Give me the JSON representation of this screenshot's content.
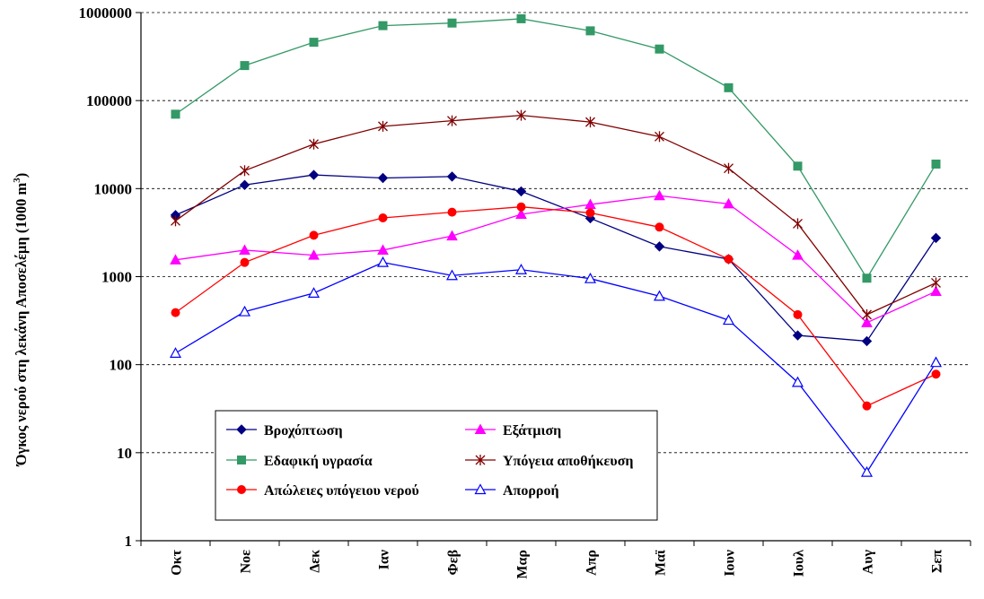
{
  "chart_data": {
    "type": "line",
    "y_scale": "log",
    "ylim": [
      1,
      1000000
    ],
    "grid": "horizontal dashed",
    "legend_placement": "bottom-left",
    "ylabel": "Όγκος νερού στη λεκάνη Αποσελέμη (1000 m",
    "ylabel_sup": "3",
    "ylabel_tail": ")",
    "yticks": [
      {
        "value": 1,
        "label": "1"
      },
      {
        "value": 10,
        "label": "10"
      },
      {
        "value": 100,
        "label": "100"
      },
      {
        "value": 1000,
        "label": "1000"
      },
      {
        "value": 10000,
        "label": "10000"
      },
      {
        "value": 100000,
        "label": "100000"
      },
      {
        "value": 1000000,
        "label": "1000000"
      }
    ],
    "categories": [
      "Οκτ",
      "Νοε",
      "Δεκ",
      "Ιαν",
      "Φεβ",
      "Μαρ",
      "Απρ",
      "Μαϊ",
      "Ιουν",
      "Ιουλ",
      "Αυγ",
      "Σεπ"
    ],
    "series": [
      {
        "name": "Βροχόπτωση",
        "color": "#000080",
        "marker": "diamond",
        "values": [
          5000,
          11000,
          14300,
          13200,
          13700,
          9300,
          4600,
          2200,
          1580,
          215,
          185,
          2750
        ]
      },
      {
        "name": "Εξάτμιση",
        "color": "#ff00ff",
        "marker": "triangle",
        "values": [
          1550,
          2000,
          1750,
          2000,
          2900,
          5100,
          6600,
          8300,
          6700,
          1750,
          300,
          680
        ]
      },
      {
        "name": "Εδαφική υγρασία",
        "color": "#339966",
        "marker": "square",
        "values": [
          70000,
          250000,
          460000,
          710000,
          760000,
          850000,
          620000,
          385000,
          140000,
          18000,
          960,
          19000
        ]
      },
      {
        "name": "Υπόγεια αποθήκευση",
        "color": "#800000",
        "marker": "asterisk",
        "values": [
          4300,
          16000,
          32000,
          51000,
          59000,
          68000,
          57000,
          39000,
          17000,
          4000,
          370,
          850
        ]
      },
      {
        "name": "Απώλειες υπόγειου νερού",
        "color": "#ff0000",
        "marker": "circle",
        "values": [
          390,
          1450,
          2950,
          4650,
          5400,
          6200,
          5300,
          3650,
          1580,
          370,
          34,
          78
        ]
      },
      {
        "name": "Απορροή",
        "color": "#0000ff",
        "marker": "triangle-open",
        "values": [
          135,
          400,
          650,
          1450,
          1030,
          1200,
          950,
          600,
          320,
          63,
          6,
          106
        ]
      }
    ]
  }
}
